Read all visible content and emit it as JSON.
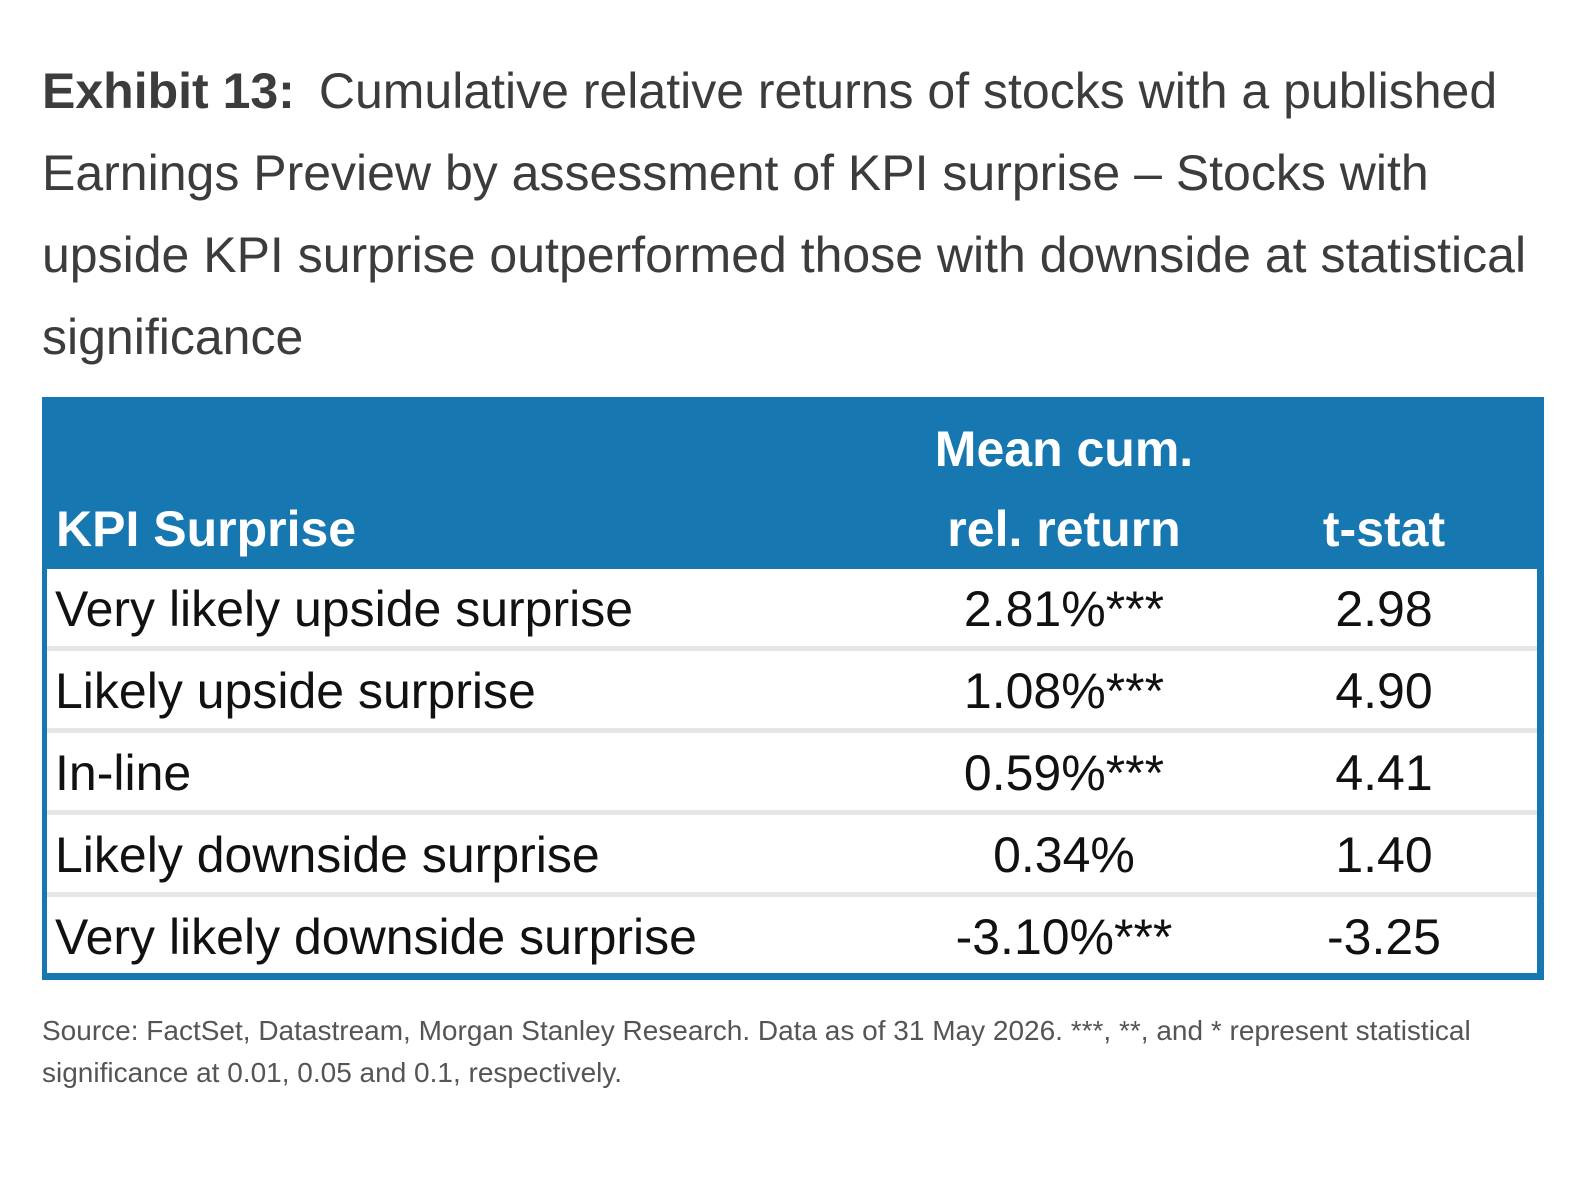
{
  "exhibit": {
    "label": "Exhibit 13:",
    "title": "Cumulative relative returns of stocks with a published Earnings Preview by assessment of KPI surprise – Stocks with upside KPI surprise outperformed those with downside at statistical significance"
  },
  "table": {
    "headers": {
      "kpi": "KPI Surprise",
      "mean_line1": "Mean cum.",
      "mean_line2": "rel. return",
      "tstat": "t-stat"
    },
    "rows": [
      {
        "kpi": "Very likely upside surprise",
        "ret": "2.81%***",
        "tstat": "2.98"
      },
      {
        "kpi": "Likely upside surprise",
        "ret": "1.08%***",
        "tstat": "4.90"
      },
      {
        "kpi": "In-line",
        "ret": "0.59%***",
        "tstat": "4.41"
      },
      {
        "kpi": "Likely downside surprise",
        "ret": "0.34%",
        "tstat": "1.40"
      },
      {
        "kpi": "Very likely downside surprise",
        "ret": "-3.10%***",
        "tstat": "-3.25"
      }
    ]
  },
  "source": "Source: FactSet, Datastream, Morgan Stanley Research. Data as of 31 May 2026. ***, **, and * represent statistical significance at 0.01, 0.05 and 0.1, respectively.",
  "colors": {
    "header_bg": "#1778b1",
    "header_text": "#ffffff",
    "row_divider": "#e6e6e6",
    "title_text": "#3c3c3c"
  }
}
